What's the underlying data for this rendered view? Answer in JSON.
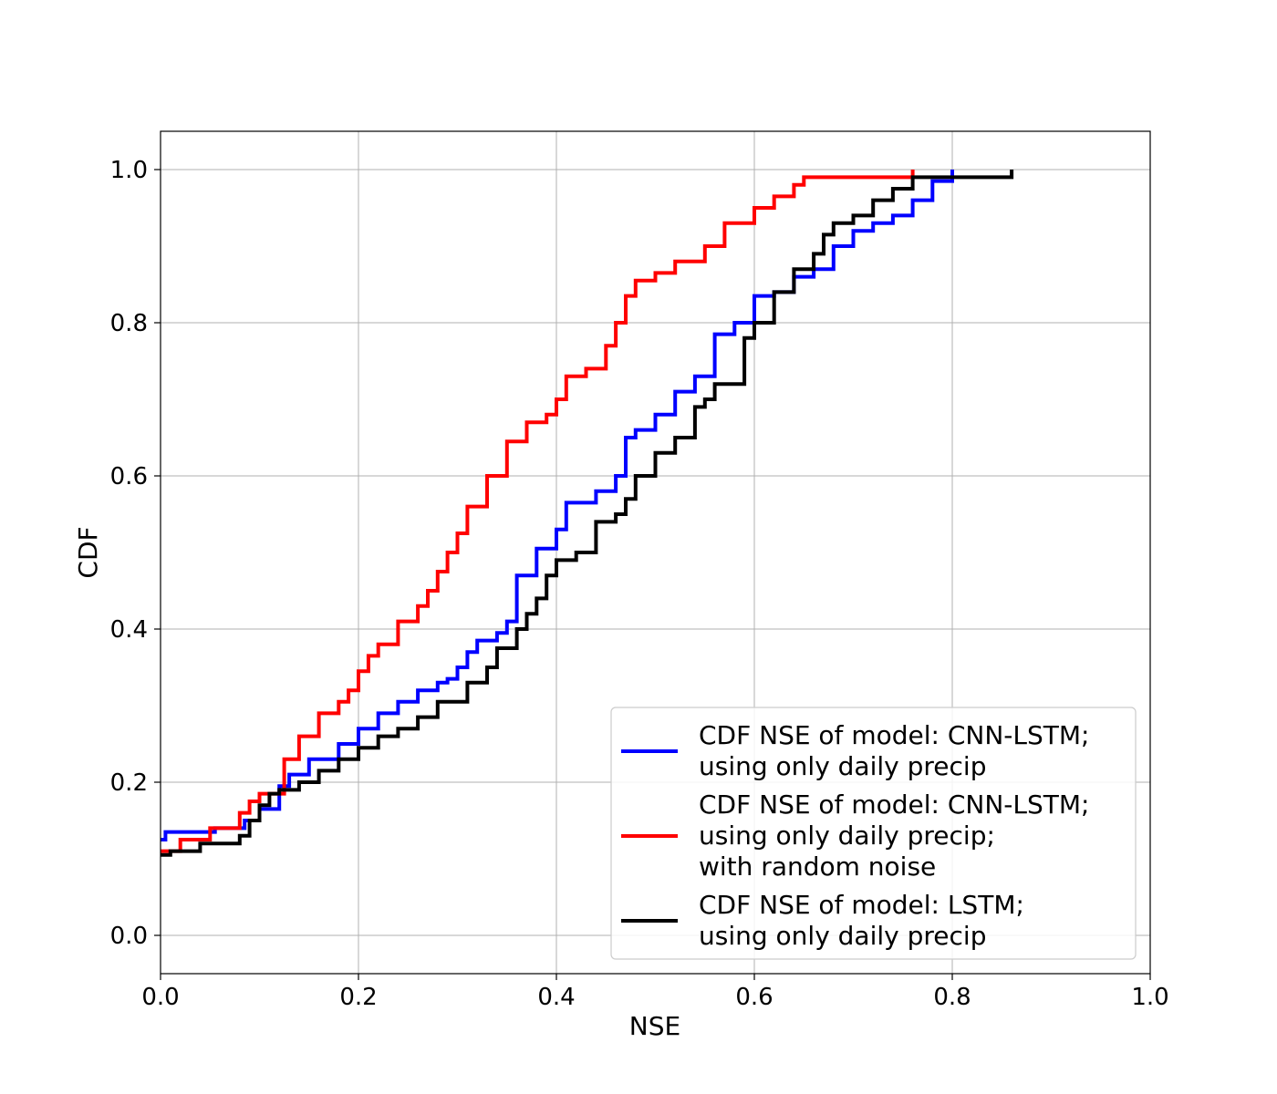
{
  "chart_data": {
    "type": "line",
    "title": "",
    "xlabel": "NSE",
    "ylabel": "CDF",
    "xlim": [
      0.0,
      1.0
    ],
    "ylim": [
      -0.05,
      1.05
    ],
    "xticks": [
      "0.0",
      "0.2",
      "0.4",
      "0.6",
      "0.8",
      "1.0"
    ],
    "yticks": [
      "0.0",
      "0.2",
      "0.4",
      "0.6",
      "0.8",
      "1.0"
    ],
    "grid": true,
    "legend_position": "lower-right",
    "series": [
      {
        "name": "CDF NSE of model: CNN-LSTM; using only daily precip",
        "legend_lines": [
          "CDF NSE of model: CNN-LSTM;",
          "using only daily precip"
        ],
        "color": "#0000ff",
        "x": [
          0.0,
          0.005,
          0.055,
          0.085,
          0.1,
          0.12,
          0.13,
          0.15,
          0.18,
          0.2,
          0.22,
          0.24,
          0.26,
          0.28,
          0.29,
          0.3,
          0.31,
          0.32,
          0.34,
          0.35,
          0.36,
          0.38,
          0.4,
          0.41,
          0.44,
          0.46,
          0.47,
          0.48,
          0.5,
          0.52,
          0.54,
          0.56,
          0.58,
          0.6,
          0.62,
          0.64,
          0.66,
          0.68,
          0.7,
          0.72,
          0.74,
          0.76,
          0.78,
          0.8
        ],
        "y": [
          0.125,
          0.135,
          0.14,
          0.15,
          0.165,
          0.195,
          0.21,
          0.23,
          0.25,
          0.27,
          0.29,
          0.305,
          0.32,
          0.33,
          0.335,
          0.35,
          0.37,
          0.385,
          0.395,
          0.41,
          0.47,
          0.505,
          0.53,
          0.565,
          0.58,
          0.6,
          0.65,
          0.66,
          0.68,
          0.71,
          0.73,
          0.785,
          0.8,
          0.835,
          0.84,
          0.86,
          0.87,
          0.9,
          0.92,
          0.93,
          0.94,
          0.96,
          0.985,
          1.0
        ]
      },
      {
        "name": "CDF NSE of model: CNN-LSTM; using only daily precip; with random noise",
        "legend_lines": [
          "CDF NSE of model: CNN-LSTM;",
          "using only daily precip;",
          "with random noise"
        ],
        "color": "#ff0000",
        "x": [
          0.0,
          0.02,
          0.05,
          0.08,
          0.09,
          0.1,
          0.125,
          0.14,
          0.16,
          0.18,
          0.19,
          0.2,
          0.21,
          0.22,
          0.24,
          0.26,
          0.27,
          0.28,
          0.29,
          0.3,
          0.31,
          0.33,
          0.35,
          0.37,
          0.39,
          0.4,
          0.41,
          0.43,
          0.45,
          0.46,
          0.47,
          0.48,
          0.5,
          0.52,
          0.55,
          0.57,
          0.6,
          0.62,
          0.64,
          0.65,
          0.76
        ],
        "y": [
          0.11,
          0.125,
          0.14,
          0.16,
          0.175,
          0.185,
          0.23,
          0.26,
          0.29,
          0.305,
          0.32,
          0.345,
          0.365,
          0.38,
          0.41,
          0.43,
          0.45,
          0.475,
          0.5,
          0.525,
          0.56,
          0.6,
          0.645,
          0.67,
          0.68,
          0.7,
          0.73,
          0.74,
          0.77,
          0.8,
          0.835,
          0.855,
          0.865,
          0.88,
          0.9,
          0.93,
          0.95,
          0.965,
          0.98,
          0.99,
          1.0
        ]
      },
      {
        "name": "CDF NSE of model: LSTM; using only daily precip",
        "legend_lines": [
          "CDF NSE of model: LSTM;",
          "using only daily precip"
        ],
        "color": "#000000",
        "x": [
          0.0,
          0.01,
          0.04,
          0.08,
          0.09,
          0.1,
          0.11,
          0.12,
          0.14,
          0.16,
          0.18,
          0.2,
          0.22,
          0.24,
          0.26,
          0.28,
          0.31,
          0.33,
          0.34,
          0.36,
          0.37,
          0.38,
          0.39,
          0.4,
          0.42,
          0.44,
          0.46,
          0.47,
          0.48,
          0.5,
          0.52,
          0.54,
          0.55,
          0.56,
          0.59,
          0.6,
          0.62,
          0.64,
          0.66,
          0.67,
          0.68,
          0.7,
          0.72,
          0.74,
          0.76,
          0.86
        ],
        "y": [
          0.105,
          0.11,
          0.12,
          0.13,
          0.15,
          0.17,
          0.185,
          0.19,
          0.2,
          0.215,
          0.23,
          0.245,
          0.26,
          0.27,
          0.285,
          0.305,
          0.33,
          0.35,
          0.375,
          0.4,
          0.42,
          0.44,
          0.47,
          0.49,
          0.5,
          0.54,
          0.55,
          0.57,
          0.6,
          0.63,
          0.65,
          0.69,
          0.7,
          0.72,
          0.78,
          0.8,
          0.84,
          0.87,
          0.89,
          0.915,
          0.93,
          0.94,
          0.96,
          0.975,
          0.99,
          1.0
        ]
      }
    ]
  }
}
